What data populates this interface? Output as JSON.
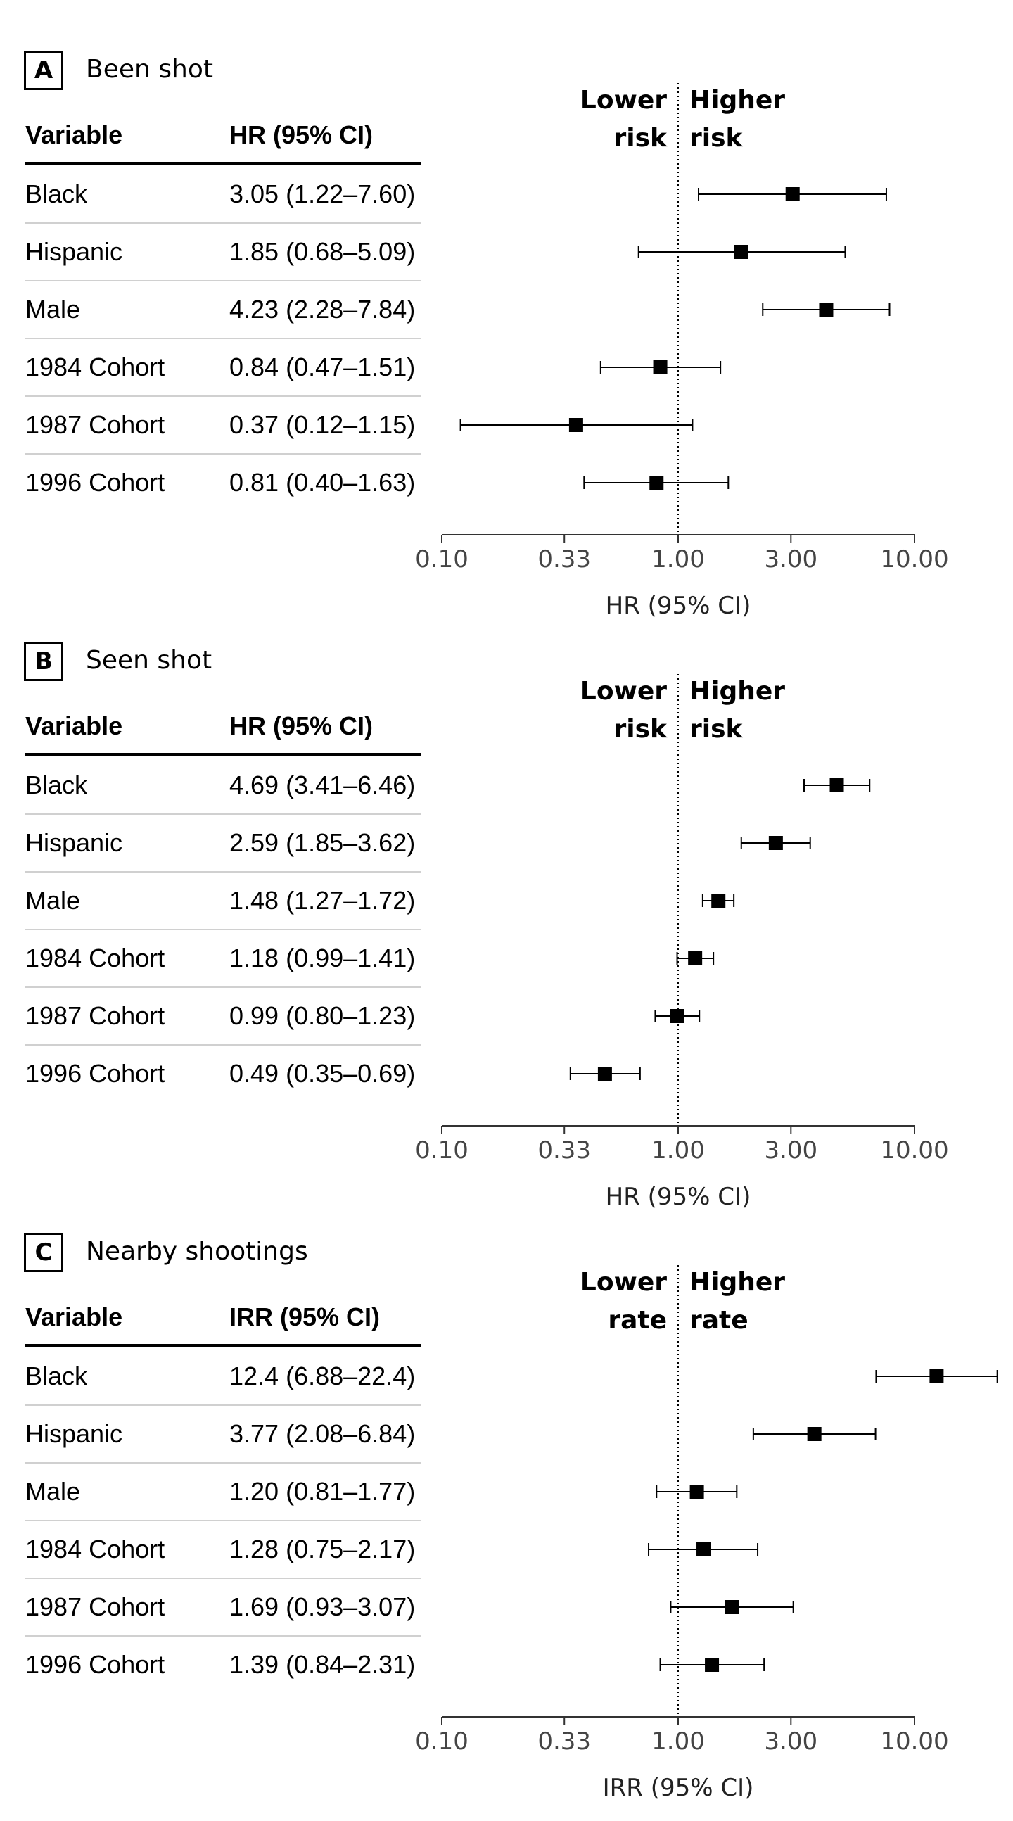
{
  "chart_data": [
    {
      "type": "forest",
      "panel": "A",
      "title": "Been shot",
      "columns": {
        "variable": "Variable",
        "estimate": "HR (95% CI)"
      },
      "direction_labels": {
        "left": [
          "Lower",
          "risk"
        ],
        "right": [
          "Higher",
          "risk"
        ]
      },
      "xlabel": "HR (95% CI)",
      "xscale": "log",
      "xlim": [
        0.1,
        10
      ],
      "xticks": [
        0.1,
        0.33,
        1,
        3,
        10
      ],
      "xtick_labels": [
        "0.10",
        "0.33",
        "1.00",
        "3.00",
        "10.00"
      ],
      "reference_line": 1,
      "rows": [
        {
          "label": "Black",
          "estimate_text": "3.05 (1.22–7.60)",
          "est": 3.05,
          "lo": 1.22,
          "hi": 7.6
        },
        {
          "label": "Hispanic",
          "estimate_text": "1.85 (0.68–5.09)",
          "est": 1.85,
          "lo": 0.68,
          "hi": 5.09
        },
        {
          "label": "Male",
          "estimate_text": "4.23 (2.28–7.84)",
          "est": 4.23,
          "lo": 2.28,
          "hi": 7.84
        },
        {
          "label": "1984 Cohort",
          "estimate_text": "0.84 (0.47–1.51)",
          "est": 0.84,
          "lo": 0.47,
          "hi": 1.51
        },
        {
          "label": "1987 Cohort",
          "estimate_text": "0.37 (0.12–1.15)",
          "est": 0.37,
          "lo": 0.12,
          "hi": 1.15
        },
        {
          "label": "1996 Cohort",
          "estimate_text": "0.81 (0.40–1.63)",
          "est": 0.81,
          "lo": 0.4,
          "hi": 1.63
        }
      ]
    },
    {
      "type": "forest",
      "panel": "B",
      "title": "Seen shot",
      "columns": {
        "variable": "Variable",
        "estimate": "HR (95% CI)"
      },
      "direction_labels": {
        "left": [
          "Lower",
          "risk"
        ],
        "right": [
          "Higher",
          "risk"
        ]
      },
      "xlabel": "HR (95% CI)",
      "xscale": "log",
      "xlim": [
        0.1,
        10
      ],
      "xticks": [
        0.1,
        0.33,
        1,
        3,
        10
      ],
      "xtick_labels": [
        "0.10",
        "0.33",
        "1.00",
        "3.00",
        "10.00"
      ],
      "reference_line": 1,
      "rows": [
        {
          "label": "Black",
          "estimate_text": "4.69 (3.41–6.46)",
          "est": 4.69,
          "lo": 3.41,
          "hi": 6.46
        },
        {
          "label": "Hispanic",
          "estimate_text": "2.59 (1.85–3.62)",
          "est": 2.59,
          "lo": 1.85,
          "hi": 3.62
        },
        {
          "label": "Male",
          "estimate_text": "1.48 (1.27–1.72)",
          "est": 1.48,
          "lo": 1.27,
          "hi": 1.72
        },
        {
          "label": "1984 Cohort",
          "estimate_text": "1.18 (0.99–1.41)",
          "est": 1.18,
          "lo": 0.99,
          "hi": 1.41
        },
        {
          "label": "1987 Cohort",
          "estimate_text": "0.99 (0.80–1.23)",
          "est": 0.99,
          "lo": 0.8,
          "hi": 1.23
        },
        {
          "label": "1996 Cohort",
          "estimate_text": "0.49 (0.35–0.69)",
          "est": 0.49,
          "lo": 0.35,
          "hi": 0.69
        }
      ]
    },
    {
      "type": "forest",
      "panel": "C",
      "title": "Nearby shootings",
      "columns": {
        "variable": "Variable",
        "estimate": "IRR (95% CI)"
      },
      "direction_labels": {
        "left": [
          "Lower",
          "rate"
        ],
        "right": [
          "Higher",
          "rate"
        ]
      },
      "xlabel": "IRR (95% CI)",
      "xscale": "log",
      "xlim": [
        0.1,
        10
      ],
      "xticks": [
        0.1,
        0.33,
        1,
        3,
        10
      ],
      "xtick_labels": [
        "0.10",
        "0.33",
        "1.00",
        "3.00",
        "10.00"
      ],
      "reference_line": 1,
      "rows": [
        {
          "label": "Black",
          "estimate_text": "12.4 (6.88–22.4)",
          "est": 12.4,
          "lo": 6.88,
          "hi": 22.4
        },
        {
          "label": "Hispanic",
          "estimate_text": "3.77 (2.08–6.84)",
          "est": 3.77,
          "lo": 2.08,
          "hi": 6.84
        },
        {
          "label": "Male",
          "estimate_text": "1.20 (0.81–1.77)",
          "est": 1.2,
          "lo": 0.81,
          "hi": 1.77
        },
        {
          "label": "1984 Cohort",
          "estimate_text": "1.28 (0.75–2.17)",
          "est": 1.28,
          "lo": 0.75,
          "hi": 2.17
        },
        {
          "label": "1987 Cohort",
          "estimate_text": "1.69 (0.93–3.07)",
          "est": 1.69,
          "lo": 0.93,
          "hi": 3.07
        },
        {
          "label": "1996 Cohort",
          "estimate_text": "1.39 (0.84–2.31)",
          "est": 1.39,
          "lo": 0.84,
          "hi": 2.31
        }
      ]
    }
  ]
}
